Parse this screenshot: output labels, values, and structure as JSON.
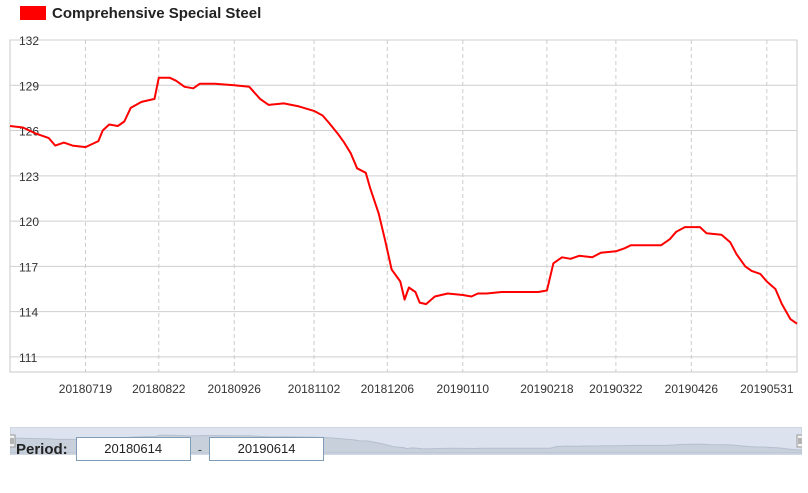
{
  "legend": {
    "label": "Comprehensive Special Steel",
    "color": "#ff0000"
  },
  "period": {
    "label": "Period:",
    "start": "20180614",
    "separator": "-",
    "end": "20190614"
  },
  "chart_data": {
    "type": "line",
    "title": "",
    "xlabel": "",
    "ylabel": "",
    "ylim": [
      110,
      132
    ],
    "yticks": [
      111,
      114,
      117,
      120,
      123,
      126,
      129,
      132
    ],
    "xticks": [
      "20180719",
      "20180822",
      "20180926",
      "20181102",
      "20181206",
      "20190110",
      "20190218",
      "20190322",
      "20190426",
      "20190531"
    ],
    "grid": true,
    "legend_position": "top-left",
    "series": [
      {
        "name": "Comprehensive Special Steel",
        "color": "#ff0000",
        "points": [
          [
            "2018-06-14",
            126.3
          ],
          [
            "2018-06-20",
            126.2
          ],
          [
            "2018-06-26",
            125.8
          ],
          [
            "2018-07-02",
            125.5
          ],
          [
            "2018-07-05",
            125.0
          ],
          [
            "2018-07-09",
            125.2
          ],
          [
            "2018-07-13",
            125.0
          ],
          [
            "2018-07-19",
            124.9
          ],
          [
            "2018-07-25",
            125.3
          ],
          [
            "2018-07-27",
            126.0
          ],
          [
            "2018-07-30",
            126.4
          ],
          [
            "2018-08-03",
            126.3
          ],
          [
            "2018-08-06",
            126.6
          ],
          [
            "2018-08-09",
            127.5
          ],
          [
            "2018-08-14",
            127.9
          ],
          [
            "2018-08-20",
            128.1
          ],
          [
            "2018-08-22",
            129.5
          ],
          [
            "2018-08-27",
            129.5
          ],
          [
            "2018-08-30",
            129.3
          ],
          [
            "2018-09-03",
            128.9
          ],
          [
            "2018-09-07",
            128.8
          ],
          [
            "2018-09-10",
            129.1
          ],
          [
            "2018-09-17",
            129.1
          ],
          [
            "2018-09-26",
            129.0
          ],
          [
            "2018-10-03",
            128.9
          ],
          [
            "2018-10-08",
            128.1
          ],
          [
            "2018-10-12",
            127.7
          ],
          [
            "2018-10-19",
            127.8
          ],
          [
            "2018-10-26",
            127.6
          ],
          [
            "2018-11-02",
            127.3
          ],
          [
            "2018-11-06",
            127.0
          ],
          [
            "2018-11-09",
            126.5
          ],
          [
            "2018-11-13",
            125.8
          ],
          [
            "2018-11-16",
            125.2
          ],
          [
            "2018-11-19",
            124.5
          ],
          [
            "2018-11-22",
            123.5
          ],
          [
            "2018-11-26",
            123.2
          ],
          [
            "2018-11-28",
            122.2
          ],
          [
            "2018-12-02",
            120.5
          ],
          [
            "2018-12-05",
            118.7
          ],
          [
            "2018-12-08",
            116.8
          ],
          [
            "2018-12-12",
            116.0
          ],
          [
            "2018-12-14",
            114.8
          ],
          [
            "2018-12-16",
            115.6
          ],
          [
            "2018-12-19",
            115.3
          ],
          [
            "2018-12-21",
            114.6
          ],
          [
            "2018-12-24",
            114.5
          ],
          [
            "2018-12-28",
            115.0
          ],
          [
            "2019-01-03",
            115.2
          ],
          [
            "2019-01-10",
            115.1
          ],
          [
            "2019-01-14",
            115.0
          ],
          [
            "2019-01-17",
            115.2
          ],
          [
            "2019-01-21",
            115.2
          ],
          [
            "2019-01-28",
            115.3
          ],
          [
            "2019-02-14",
            115.3
          ],
          [
            "2019-02-18",
            115.4
          ],
          [
            "2019-02-21",
            117.2
          ],
          [
            "2019-02-25",
            117.6
          ],
          [
            "2019-03-01",
            117.5
          ],
          [
            "2019-03-05",
            117.7
          ],
          [
            "2019-03-11",
            117.6
          ],
          [
            "2019-03-15",
            117.9
          ],
          [
            "2019-03-22",
            118.0
          ],
          [
            "2019-03-26",
            118.2
          ],
          [
            "2019-03-29",
            118.4
          ],
          [
            "2019-04-05",
            118.4
          ],
          [
            "2019-04-12",
            118.4
          ],
          [
            "2019-04-16",
            118.8
          ],
          [
            "2019-04-19",
            119.3
          ],
          [
            "2019-04-23",
            119.6
          ],
          [
            "2019-04-30",
            119.6
          ],
          [
            "2019-05-03",
            119.2
          ],
          [
            "2019-05-10",
            119.1
          ],
          [
            "2019-05-14",
            118.6
          ],
          [
            "2019-05-17",
            117.8
          ],
          [
            "2019-05-21",
            117.0
          ],
          [
            "2019-05-24",
            116.7
          ],
          [
            "2019-05-28",
            116.5
          ],
          [
            "2019-05-31",
            116.0
          ],
          [
            "2019-06-04",
            115.5
          ],
          [
            "2019-06-07",
            114.5
          ],
          [
            "2019-06-11",
            113.5
          ],
          [
            "2019-06-14",
            113.2
          ]
        ]
      }
    ]
  }
}
